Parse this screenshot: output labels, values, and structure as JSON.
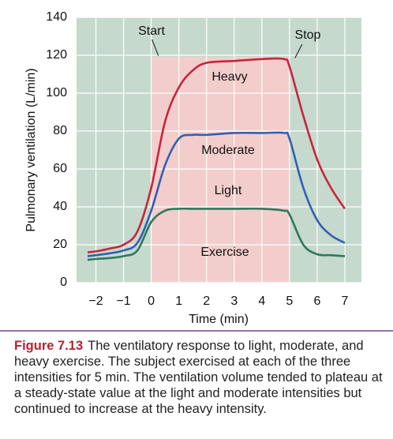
{
  "chart_data": {
    "type": "line",
    "y_label": "Pulmonary ventilation (L/min)",
    "x_label": "Time (min)",
    "x": [
      -2.3,
      -2,
      -1.5,
      -1,
      -0.5,
      0,
      0.5,
      1,
      1.5,
      2,
      3,
      4,
      4.8,
      5,
      5.5,
      6,
      6.5,
      7
    ],
    "series": [
      {
        "name": "Heavy",
        "color": "#c7253e",
        "values": [
          16,
          16.5,
          18,
          20,
          27,
          50,
          85,
          103,
          112,
          116,
          117,
          118,
          118,
          114,
          88,
          65,
          50,
          39
        ]
      },
      {
        "name": "Moderate",
        "color": "#2f60b4",
        "values": [
          14,
          14.5,
          15.5,
          17,
          21,
          38,
          62,
          76,
          78,
          78,
          79,
          79,
          79,
          76,
          50,
          33,
          25,
          21
        ]
      },
      {
        "name": "Light",
        "color": "#2b7a5c",
        "values": [
          12,
          12.5,
          13,
          14,
          17,
          32,
          38,
          39,
          39,
          39,
          39,
          39,
          38,
          36,
          20,
          15,
          14.5,
          14
        ]
      }
    ],
    "exercise_region": {
      "label": "Exercise",
      "x": [
        0,
        5
      ],
      "top": 119,
      "color": "#f3cdcb"
    },
    "annotations": [
      "Start",
      "Stop"
    ],
    "xlim": [
      -2.7,
      7.6
    ],
    "ylim": [
      0,
      140
    ],
    "xticks": [
      {
        "value": -2,
        "label": "−2"
      },
      {
        "value": -1,
        "label": "−1"
      },
      0,
      1,
      2,
      3,
      4,
      5,
      6,
      7
    ],
    "yticks": [
      0,
      20,
      40,
      60,
      80,
      100,
      120,
      140
    ],
    "grid": true,
    "background": "#c6d9cd"
  },
  "caption": {
    "label": "Figure 7.13",
    "text": "The ventilatory response to light, moderate, and heavy exercise. The subject exercised at each of the three intensities for 5 min. The ventilation volume tended to plateau at a steady-state value at the light and moderate intensities but continued to increase at the heavy intensity."
  }
}
